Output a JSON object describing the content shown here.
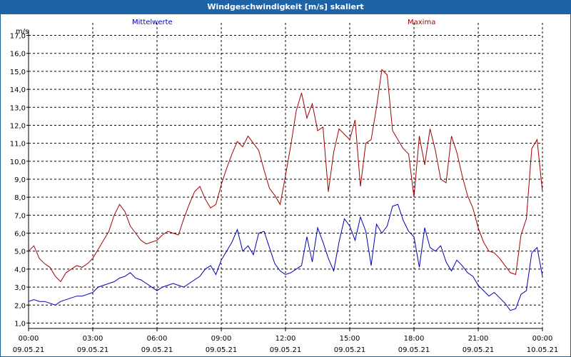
{
  "window": {
    "title": "Windgeschwindigkeit [m/s] skaliert"
  },
  "colors": {
    "titlebar": "#1e63a5",
    "mean": "#0000b4",
    "max": "#a00000",
    "grid": "#000000"
  },
  "chart_data": {
    "type": "line",
    "title": "Windgeschwindigkeit [m/s] skaliert",
    "ylabel": "m/s",
    "ylim": [
      0.7,
      17.3
    ],
    "yticks": [
      "1,0",
      "2,0",
      "3,0",
      "4,0",
      "5,0",
      "6,0",
      "7,0",
      "8,0",
      "9,0",
      "10,0",
      "11,0",
      "12,0",
      "13,0",
      "14,0",
      "15,0",
      "16,0",
      "17,0"
    ],
    "yticks_values": [
      1,
      2,
      3,
      4,
      5,
      6,
      7,
      8,
      9,
      10,
      11,
      12,
      13,
      14,
      15,
      16,
      17
    ],
    "xlim": [
      "09.05.21 00:00",
      "10.05.21 00:00"
    ],
    "xticks": [
      {
        "time": "00:00",
        "date": "09.05.21",
        "hours": 0
      },
      {
        "time": "03:00",
        "date": "09.05.21",
        "hours": 3
      },
      {
        "time": "06:00",
        "date": "09.05.21",
        "hours": 6
      },
      {
        "time": "09:00",
        "date": "09.05.21",
        "hours": 9
      },
      {
        "time": "12:00",
        "date": "09.05.21",
        "hours": 12
      },
      {
        "time": "15:00",
        "date": "09.05.21",
        "hours": 15
      },
      {
        "time": "18:00",
        "date": "09.05.21",
        "hours": 18
      },
      {
        "time": "21:00",
        "date": "09.05.21",
        "hours": 21
      },
      {
        "time": "00:00",
        "date": "10.05.21",
        "hours": 24
      }
    ],
    "grid": true,
    "series": [
      {
        "name": "Mittelwerte",
        "color": "#0000b4",
        "x_hours": [
          0,
          0.25,
          0.5,
          0.75,
          1,
          1.25,
          1.5,
          1.75,
          2,
          2.25,
          2.5,
          2.75,
          3,
          3.25,
          3.5,
          3.75,
          4,
          4.25,
          4.5,
          4.75,
          5,
          5.25,
          5.5,
          5.75,
          6,
          6.25,
          6.5,
          6.75,
          7,
          7.25,
          7.5,
          7.75,
          8,
          8.25,
          8.5,
          8.75,
          9,
          9.25,
          9.5,
          9.75,
          10,
          10.25,
          10.5,
          10.75,
          11,
          11.25,
          11.5,
          11.75,
          12,
          12.25,
          12.5,
          12.75,
          13,
          13.25,
          13.5,
          13.75,
          14,
          14.25,
          14.5,
          14.75,
          15,
          15.25,
          15.5,
          15.75,
          16,
          16.25,
          16.5,
          16.75,
          17,
          17.25,
          17.5,
          17.75,
          18,
          18.25,
          18.5,
          18.75,
          19,
          19.25,
          19.5,
          19.75,
          20,
          20.25,
          20.5,
          20.75,
          21,
          21.25,
          21.5,
          21.75,
          22,
          22.25,
          22.5,
          22.75,
          23,
          23.25,
          23.5,
          23.75,
          24
        ],
        "values": [
          2.2,
          2.3,
          2.2,
          2.2,
          2.1,
          2.0,
          2.2,
          2.3,
          2.4,
          2.5,
          2.5,
          2.6,
          2.7,
          3.0,
          3.1,
          3.2,
          3.3,
          3.5,
          3.6,
          3.8,
          3.5,
          3.4,
          3.2,
          3.0,
          2.8,
          3.0,
          3.1,
          3.2,
          3.1,
          3.0,
          3.2,
          3.4,
          3.6,
          4.0,
          4.2,
          3.7,
          4.5,
          5.0,
          5.5,
          6.2,
          5.0,
          5.3,
          4.8,
          6.0,
          6.1,
          5.2,
          4.3,
          3.9,
          3.7,
          3.8,
          4.0,
          4.2,
          5.8,
          4.4,
          6.3,
          5.5,
          4.6,
          3.9,
          5.5,
          6.8,
          6.4,
          5.6,
          6.9,
          6.1,
          4.2,
          6.5,
          6.0,
          6.4,
          7.5,
          7.6,
          6.7,
          6.1,
          5.8,
          4.1,
          6.3,
          5.2,
          5.0,
          5.3,
          4.4,
          3.9,
          4.5,
          4.2,
          3.8,
          3.6,
          3.1,
          2.8,
          2.5,
          2.7,
          2.4,
          2.1,
          1.7,
          1.8,
          2.6,
          2.8,
          4.9,
          5.2,
          3.6
        ],
        "label_position": "top-left"
      },
      {
        "name": "Maxima",
        "color": "#a00000",
        "x_hours": [
          0,
          0.25,
          0.5,
          0.75,
          1,
          1.25,
          1.5,
          1.75,
          2,
          2.25,
          2.5,
          2.75,
          3,
          3.25,
          3.5,
          3.75,
          4,
          4.25,
          4.5,
          4.75,
          5,
          5.25,
          5.5,
          5.75,
          6,
          6.25,
          6.5,
          6.75,
          7,
          7.25,
          7.5,
          7.75,
          8,
          8.25,
          8.5,
          8.75,
          9,
          9.25,
          9.5,
          9.75,
          10,
          10.25,
          10.5,
          10.75,
          11,
          11.25,
          11.5,
          11.75,
          12,
          12.25,
          12.5,
          12.75,
          13,
          13.25,
          13.5,
          13.75,
          14,
          14.25,
          14.5,
          14.75,
          15,
          15.25,
          15.5,
          15.75,
          16,
          16.25,
          16.5,
          16.75,
          17,
          17.25,
          17.5,
          17.75,
          18,
          18.25,
          18.5,
          18.75,
          19,
          19.25,
          19.5,
          19.75,
          20,
          20.25,
          20.5,
          20.75,
          21,
          21.25,
          21.5,
          21.75,
          22,
          22.25,
          22.5,
          22.75,
          23,
          23.25,
          23.5,
          23.75,
          24
        ],
        "values": [
          5.0,
          5.3,
          4.6,
          4.3,
          4.1,
          3.6,
          3.3,
          3.8,
          4.0,
          4.2,
          4.1,
          4.3,
          4.6,
          5.1,
          5.6,
          6.1,
          7.0,
          7.6,
          7.2,
          6.4,
          6.0,
          5.6,
          5.4,
          5.5,
          5.6,
          5.9,
          6.1,
          6.0,
          5.9,
          6.8,
          7.6,
          8.3,
          8.6,
          7.9,
          7.4,
          7.6,
          8.7,
          9.6,
          10.4,
          11.1,
          10.8,
          11.4,
          11.0,
          10.6,
          9.5,
          8.5,
          8.1,
          7.6,
          9.2,
          10.9,
          12.8,
          13.8,
          12.4,
          13.2,
          11.7,
          11.9,
          8.3,
          10.5,
          11.8,
          11.5,
          11.2,
          12.3,
          8.6,
          11.0,
          11.2,
          13.0,
          15.1,
          14.8,
          11.7,
          11.2,
          10.7,
          10.4,
          8.0,
          11.4,
          9.8,
          11.8,
          10.6,
          9.0,
          8.8,
          11.4,
          10.5,
          9.2,
          8.1,
          7.4,
          6.3,
          5.5,
          5.0,
          4.9,
          4.6,
          4.2,
          3.8,
          3.7,
          5.9,
          6.8,
          10.7,
          11.2,
          8.3
        ],
        "label_position": "top-right"
      }
    ]
  }
}
